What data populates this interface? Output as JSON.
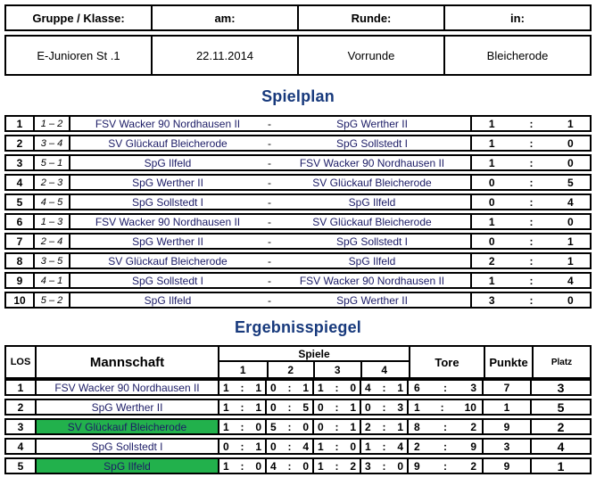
{
  "misc": {
    "dash": "-",
    "colon": ":"
  },
  "colors": {
    "title_blue": "#17397c",
    "green_highlight": "#22b14c",
    "border": "#000000",
    "team_text": "#1c1c66"
  },
  "header_table": {
    "columns": [
      {
        "label": "Gruppe / Klasse:",
        "value": "E-Junioren St .1"
      },
      {
        "label": "am:",
        "value": "22.11.2014"
      },
      {
        "label": "Runde:",
        "value": "Vorrunde"
      },
      {
        "label": "in:",
        "value": "Bleicherode"
      }
    ]
  },
  "spielplan": {
    "title": "Spielplan",
    "matches": [
      {
        "nr": "1",
        "pairing": "1 – 2",
        "home": "FSV Wacker 90 Nordhausen II",
        "away": "SpG Werther II",
        "home_score": "1",
        "away_score": "1"
      },
      {
        "nr": "2",
        "pairing": "3 – 4",
        "home": "SV Glückauf Bleicherode",
        "away": "SpG Sollstedt I",
        "home_score": "1",
        "away_score": "0"
      },
      {
        "nr": "3",
        "pairing": "5 – 1",
        "home": "SpG Ilfeld",
        "away": "FSV Wacker 90 Nordhausen II",
        "home_score": "1",
        "away_score": "0"
      },
      {
        "nr": "4",
        "pairing": "2 – 3",
        "home": "SpG Werther II",
        "away": "SV Glückauf Bleicherode",
        "home_score": "0",
        "away_score": "5"
      },
      {
        "nr": "5",
        "pairing": "4 – 5",
        "home": "SpG Sollstedt I",
        "away": "SpG Ilfeld",
        "home_score": "0",
        "away_score": "4"
      },
      {
        "nr": "6",
        "pairing": "1 – 3",
        "home": "FSV Wacker 90 Nordhausen II",
        "away": "SV Glückauf Bleicherode",
        "home_score": "1",
        "away_score": "0"
      },
      {
        "nr": "7",
        "pairing": "2 – 4",
        "home": "SpG Werther II",
        "away": "SpG Sollstedt I",
        "home_score": "0",
        "away_score": "1"
      },
      {
        "nr": "8",
        "pairing": "3 – 5",
        "home": "SV Glückauf Bleicherode",
        "away": "SpG Ilfeld",
        "home_score": "2",
        "away_score": "1"
      },
      {
        "nr": "9",
        "pairing": "4 – 1",
        "home": "SpG Sollstedt I",
        "away": "FSV Wacker 90 Nordhausen II",
        "home_score": "1",
        "away_score": "4"
      },
      {
        "nr": "10",
        "pairing": "5 – 2",
        "home": "SpG Ilfeld",
        "away": "SpG Werther II",
        "home_score": "3",
        "away_score": "0"
      }
    ]
  },
  "ergebnisspiegel": {
    "title": "Ergebnisspiegel",
    "headers": {
      "los": "LOS",
      "mannschaft": "Mannschaft",
      "spiele": "Spiele",
      "game_numbers": [
        "1",
        "2",
        "3",
        "4"
      ],
      "tore": "Tore",
      "punkte": "Punkte",
      "platz": "Platz"
    },
    "rows": [
      {
        "los": "1",
        "team": "FSV Wacker 90 Nordhausen II",
        "highlight": false,
        "games": [
          [
            "1",
            "1"
          ],
          [
            "0",
            "1"
          ],
          [
            "1",
            "0"
          ],
          [
            "4",
            "1"
          ]
        ],
        "tore": [
          "6",
          "3"
        ],
        "punkte": "7",
        "platz": "3"
      },
      {
        "los": "2",
        "team": "SpG Werther II",
        "highlight": false,
        "games": [
          [
            "1",
            "1"
          ],
          [
            "0",
            "5"
          ],
          [
            "0",
            "1"
          ],
          [
            "0",
            "3"
          ]
        ],
        "tore": [
          "1",
          "10"
        ],
        "punkte": "1",
        "platz": "5"
      },
      {
        "los": "3",
        "team": "SV Glückauf Bleicherode",
        "highlight": true,
        "games": [
          [
            "1",
            "0"
          ],
          [
            "5",
            "0"
          ],
          [
            "0",
            "1"
          ],
          [
            "2",
            "1"
          ]
        ],
        "tore": [
          "8",
          "2"
        ],
        "punkte": "9",
        "platz": "2"
      },
      {
        "los": "4",
        "team": "SpG Sollstedt I",
        "highlight": false,
        "games": [
          [
            "0",
            "1"
          ],
          [
            "0",
            "4"
          ],
          [
            "1",
            "0"
          ],
          [
            "1",
            "4"
          ]
        ],
        "tore": [
          "2",
          "9"
        ],
        "punkte": "3",
        "platz": "4"
      },
      {
        "los": "5",
        "team": "SpG Ilfeld",
        "highlight": true,
        "games": [
          [
            "1",
            "0"
          ],
          [
            "4",
            "0"
          ],
          [
            "1",
            "2"
          ],
          [
            "3",
            "0"
          ]
        ],
        "tore": [
          "9",
          "2"
        ],
        "punkte": "9",
        "platz": "1"
      }
    ]
  }
}
